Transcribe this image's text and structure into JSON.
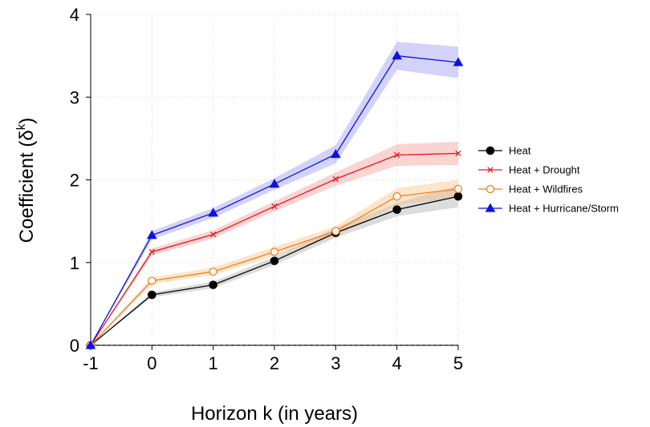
{
  "chart_data": {
    "type": "line",
    "x": [
      -1,
      0,
      1,
      2,
      3,
      4,
      5
    ],
    "xlabel": "Horizon k (in years)",
    "ylabel_main": "Coefficient (δ",
    "ylabel_sup": "k",
    "ylabel_close": ")",
    "xlim": [
      -1,
      5
    ],
    "ylim": [
      0,
      4
    ],
    "xticks": [
      -1,
      0,
      1,
      2,
      3,
      4,
      5
    ],
    "yticks": [
      0,
      1,
      2,
      3,
      4
    ],
    "grid": true,
    "legend_position": "right",
    "reference_line": {
      "y": 0,
      "style": "dashed",
      "color": "#000000"
    },
    "series": [
      {
        "name": "Heat",
        "color": "#000000",
        "band_color": "#9a9a9a",
        "marker": "filled-circle",
        "values": [
          0,
          0.61,
          0.73,
          1.02,
          1.36,
          1.64,
          1.8
        ],
        "lower": [
          0,
          0.58,
          0.69,
          0.97,
          1.3,
          1.56,
          1.67
        ],
        "upper": [
          0,
          0.64,
          0.77,
          1.07,
          1.42,
          1.72,
          1.93
        ]
      },
      {
        "name": "Heat + Drought",
        "color": "#e41a1c",
        "band_color": "#f08080",
        "marker": "x",
        "values": [
          0,
          1.13,
          1.34,
          1.68,
          2.01,
          2.3,
          2.32
        ],
        "lower": [
          0,
          1.09,
          1.29,
          1.62,
          1.93,
          2.17,
          2.18
        ],
        "upper": [
          0,
          1.17,
          1.39,
          1.74,
          2.09,
          2.43,
          2.46
        ]
      },
      {
        "name": "Heat + Wildfires",
        "color": "#f07f1e",
        "band_color": "#f5b46e",
        "marker": "open-circle",
        "values": [
          0,
          0.78,
          0.89,
          1.13,
          1.38,
          1.8,
          1.89
        ],
        "lower": [
          0,
          0.74,
          0.85,
          1.08,
          1.32,
          1.7,
          1.78
        ],
        "upper": [
          0,
          0.82,
          0.94,
          1.19,
          1.44,
          1.9,
          2.0
        ]
      },
      {
        "name": "Heat + Hurricane/Storm",
        "color": "#1010e0",
        "band_color": "#8080f0",
        "marker": "filled-triangle",
        "values": [
          0,
          1.33,
          1.6,
          1.95,
          2.31,
          3.5,
          3.42
        ],
        "lower": [
          0,
          1.28,
          1.54,
          1.88,
          2.2,
          3.33,
          3.23
        ],
        "upper": [
          0,
          1.38,
          1.66,
          2.02,
          2.42,
          3.67,
          3.61
        ]
      }
    ]
  }
}
